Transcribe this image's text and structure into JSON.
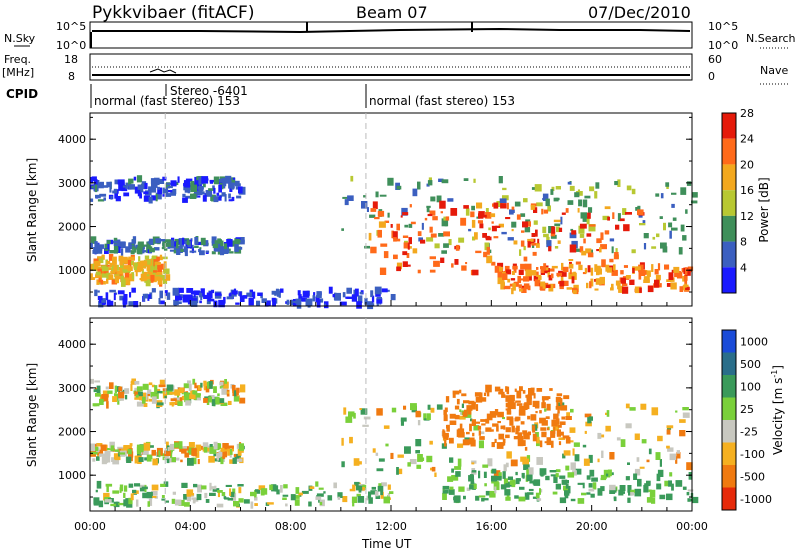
{
  "header": {
    "station": "Pykkvibaer (fitACF)",
    "beam": "Beam 07",
    "date": "07/Dec/2010"
  },
  "top_panels": {
    "nsky_label": "N.Sky",
    "nsky_ticks": [
      "10^5",
      "10^0"
    ],
    "nsearch_label": "N.Search",
    "nsearch_ticks": [
      "10^5",
      "10^0"
    ],
    "freq_label_1": "Freq.",
    "freq_label_2": "[MHz]",
    "freq_ticks": [
      "18",
      "8"
    ],
    "nave_label": "Nave",
    "nave_ticks": [
      "60",
      "0"
    ],
    "cpid_label": "CPID",
    "cpid_segments": [
      {
        "text": "normal (fast stereo) 153",
        "start_hour": 0
      },
      {
        "text": "Stereo -6401",
        "start_hour": 3
      },
      {
        "text": "normal (fast stereo) 153",
        "start_hour": 11
      }
    ]
  },
  "power_panel": {
    "ylabel": "Slant Range [km]",
    "yticks": [
      "1000",
      "2000",
      "3000",
      "4000"
    ],
    "colorbar_label": "Power [dB]",
    "colorbar_ticks": [
      "4",
      "8",
      "12",
      "16",
      "20",
      "24",
      "28"
    ],
    "colors": [
      "#1a1aff",
      "#3b5fc0",
      "#3f8f5a",
      "#b8c832",
      "#f3a81e",
      "#ff6a1a",
      "#e51a0a"
    ]
  },
  "velocity_panel": {
    "ylabel": "Slant Range [km]",
    "yticks": [
      "1000",
      "2000",
      "3000",
      "4000"
    ],
    "colorbar_label": "Velocity [m s",
    "colorbar_label_sup": "-1",
    "colorbar_label_end": "]",
    "colorbar_ticks": [
      "1000",
      "500",
      "100",
      "25",
      "-25",
      "-100",
      "-500",
      "-1000"
    ],
    "colors": [
      "#1a4bd8",
      "#2a6e8a",
      "#3a9a5a",
      "#7ad03a",
      "#c8c8c0",
      "#f5b020",
      "#f07a10",
      "#e62a0a"
    ]
  },
  "xaxis": {
    "label": "Time UT",
    "ticks": [
      "00:00",
      "04:00",
      "08:00",
      "12:00",
      "16:00",
      "20:00",
      "00:00"
    ]
  },
  "chart_data": [
    {
      "type": "heatmap",
      "title": "Pykkvibaer (fitACF)  Beam 07  07/Dec/2010",
      "quantity": "Power [dB]",
      "xlabel": "Time UT",
      "ylabel": "Slant Range [km]",
      "xlim_hours": [
        0,
        24
      ],
      "ylim": [
        180,
        4600
      ],
      "clim": [
        0,
        32
      ],
      "regions": [
        {
          "t": [
            0,
            6
          ],
          "range": [
            2600,
            3100
          ],
          "level": 6
        },
        {
          "t": [
            0,
            6
          ],
          "range": [
            1400,
            1700
          ],
          "level": 8
        },
        {
          "t": [
            0,
            3
          ],
          "range": [
            700,
            1300
          ],
          "level": 20
        },
        {
          "t": [
            0,
            12
          ],
          "range": [
            200,
            550
          ],
          "level": 4
        },
        {
          "t": [
            10,
            24
          ],
          "range": [
            1400,
            3100
          ],
          "level": 12
        },
        {
          "t": [
            11,
            22
          ],
          "range": [
            900,
            2500
          ],
          "level": 26
        },
        {
          "t": [
            16,
            24
          ],
          "range": [
            500,
            1100
          ],
          "level": 24
        }
      ]
    },
    {
      "type": "heatmap",
      "quantity": "Velocity [m s-1]",
      "xlabel": "Time UT",
      "ylabel": "Slant Range [km]",
      "xlim_hours": [
        0,
        24
      ],
      "ylim": [
        180,
        4600
      ],
      "clim": [
        -1000,
        1000
      ],
      "regions": [
        {
          "t": [
            0,
            6
          ],
          "range": [
            2600,
            3150
          ],
          "level": 0
        },
        {
          "t": [
            0,
            6
          ],
          "range": [
            1300,
            1700
          ],
          "level": 0
        },
        {
          "t": [
            0,
            12
          ],
          "range": [
            300,
            800
          ],
          "level": 80
        },
        {
          "t": [
            10,
            24
          ],
          "range": [
            1000,
            2600
          ],
          "level": 0
        },
        {
          "t": [
            14,
            19
          ],
          "range": [
            1700,
            3000
          ],
          "level": -300
        },
        {
          "t": [
            14,
            24
          ],
          "range": [
            400,
            1100
          ],
          "level": 150
        }
      ]
    }
  ]
}
